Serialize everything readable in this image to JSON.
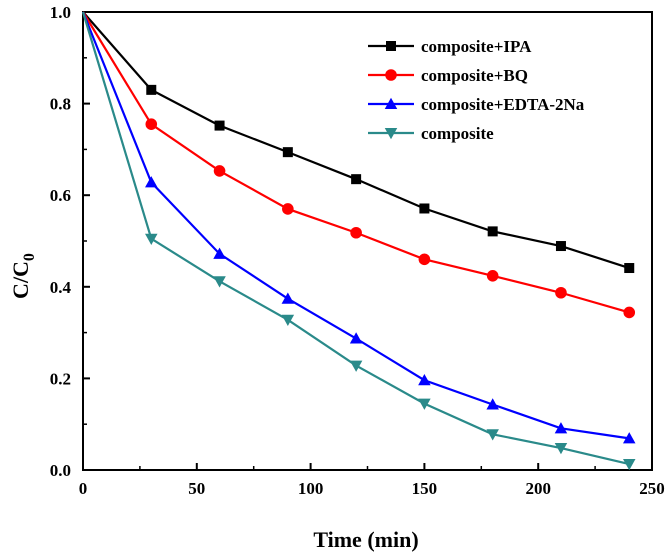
{
  "chart_data": {
    "type": "line",
    "xlabel": "Time (min)",
    "ylabel": "C/C",
    "ylabel_subscript": "0",
    "xlim": [
      0,
      250
    ],
    "ylim": [
      0.0,
      1.0
    ],
    "xticks": [
      0,
      50,
      100,
      150,
      200,
      250
    ],
    "yticks": [
      "0.0",
      "0.2",
      "0.4",
      "0.6",
      "0.8",
      "1.0"
    ],
    "legend_position": "top-right",
    "series": [
      {
        "name": "composite+IPA",
        "color": "#000000",
        "marker": "square",
        "x": [
          0,
          30,
          60,
          90,
          120,
          150,
          180,
          210,
          240
        ],
        "y": [
          1.0,
          0.83,
          0.752,
          0.694,
          0.635,
          0.571,
          0.521,
          0.489,
          0.441
        ]
      },
      {
        "name": "composite+BQ",
        "color": "#ff0000",
        "marker": "circle",
        "x": [
          0,
          30,
          60,
          90,
          120,
          150,
          180,
          210,
          240
        ],
        "y": [
          1.0,
          0.755,
          0.653,
          0.57,
          0.518,
          0.46,
          0.424,
          0.387,
          0.344
        ]
      },
      {
        "name": "composite+EDTA-2Na",
        "color": "#0000ff",
        "marker": "triangle-up",
        "x": [
          0,
          30,
          60,
          90,
          120,
          150,
          180,
          210,
          240
        ],
        "y": [
          1.0,
          0.628,
          0.472,
          0.374,
          0.287,
          0.196,
          0.143,
          0.091,
          0.069
        ]
      },
      {
        "name": "composite",
        "color": "#2a8a8a",
        "marker": "triangle-down",
        "x": [
          0,
          30,
          60,
          90,
          120,
          150,
          180,
          210,
          240
        ],
        "y": [
          1.0,
          0.505,
          0.412,
          0.328,
          0.228,
          0.145,
          0.078,
          0.048,
          0.013
        ]
      }
    ]
  }
}
